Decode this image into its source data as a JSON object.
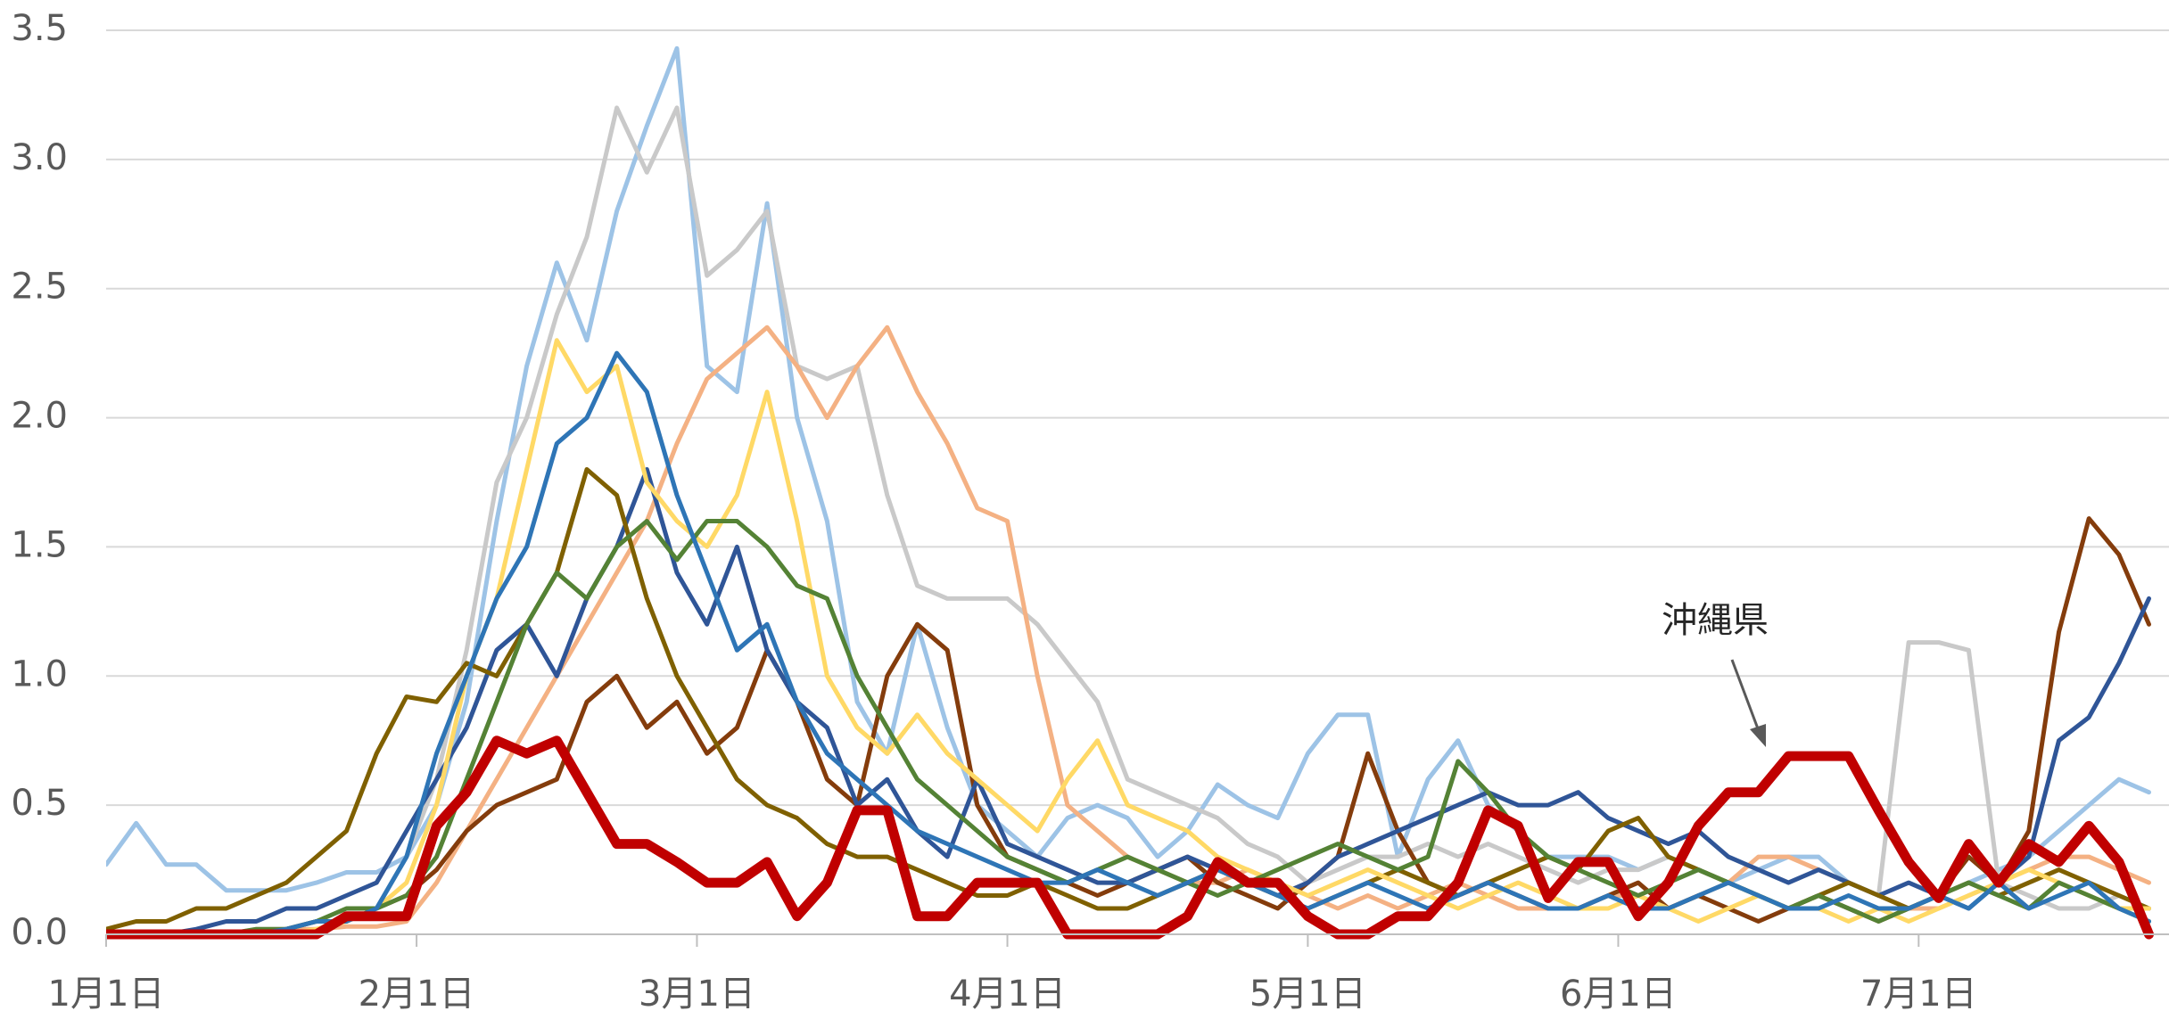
{
  "chart_data": {
    "type": "line",
    "annotation": "沖縄県",
    "x": [
      0,
      3,
      6,
      9,
      12,
      15,
      18,
      21,
      24,
      27,
      30,
      33,
      36,
      39,
      42,
      45,
      48,
      51,
      54,
      57,
      60,
      63,
      66,
      69,
      72,
      75,
      78,
      81,
      84,
      87,
      90,
      93,
      96,
      99,
      102,
      105,
      108,
      111,
      114,
      117,
      120,
      123,
      126,
      129,
      132,
      135,
      138,
      141,
      144,
      147,
      150,
      153,
      156,
      159,
      162,
      165,
      168,
      171,
      174,
      177,
      180,
      183,
      186,
      189,
      192,
      195,
      198,
      201,
      204
    ],
    "xlim": [
      0,
      206
    ],
    "xticks": [
      {
        "value": 0,
        "label": "1月1日"
      },
      {
        "value": 31,
        "label": "2月1日"
      },
      {
        "value": 59,
        "label": "3月1日"
      },
      {
        "value": 90,
        "label": "4月1日"
      },
      {
        "value": 120,
        "label": "5月1日"
      },
      {
        "value": 151,
        "label": "6月1日"
      },
      {
        "value": 181,
        "label": "7月1日"
      }
    ],
    "ylim": [
      0,
      3.5
    ],
    "yticks": [
      {
        "value": 0,
        "label": "0.0"
      },
      0.5,
      {
        "value": 1,
        "label": "1.0"
      },
      1.5,
      {
        "value": 2,
        "label": "2.0"
      },
      2.5,
      {
        "value": 3,
        "label": "3.0"
      },
      3.5
    ],
    "grid": true,
    "series": [
      {
        "color": "#9dc3e6",
        "values": [
          0.27,
          0.43,
          0.27,
          0.27,
          0.17,
          0.17,
          0.17,
          0.2,
          0.24,
          0.24,
          0.3,
          0.5,
          0.9,
          1.6,
          2.2,
          2.6,
          2.3,
          2.8,
          3.13,
          3.43,
          2.2,
          2.1,
          2.83,
          2.0,
          1.6,
          0.9,
          0.7,
          1.2,
          0.8,
          0.5,
          0.4,
          0.3,
          0.45,
          0.5,
          0.45,
          0.3,
          0.4,
          0.58,
          0.5,
          0.45,
          0.7,
          0.85,
          0.85,
          0.3,
          0.6,
          0.75,
          0.5,
          0.4,
          0.3,
          0.3,
          0.3,
          0.25,
          0.3,
          0.25,
          0.2,
          0.25,
          0.3,
          0.3,
          0.2,
          0.15,
          0.1,
          0.15,
          0.2,
          0.25,
          0.3,
          0.4,
          0.5,
          0.6,
          0.55
        ]
      },
      {
        "color": "#c9c9c9",
        "values": [
          0,
          0,
          0,
          0,
          0,
          0.02,
          0.02,
          0.05,
          0.05,
          0.1,
          0.3,
          0.6,
          1.1,
          1.75,
          2.0,
          2.4,
          2.7,
          3.2,
          2.95,
          3.2,
          2.55,
          2.65,
          2.8,
          2.2,
          2.15,
          2.2,
          1.7,
          1.35,
          1.3,
          1.3,
          1.3,
          1.2,
          1.05,
          0.9,
          0.6,
          0.55,
          0.5,
          0.45,
          0.35,
          0.3,
          0.2,
          0.25,
          0.3,
          0.3,
          0.35,
          0.3,
          0.35,
          0.3,
          0.25,
          0.2,
          0.25,
          0.25,
          0.3,
          0.25,
          0.2,
          0.15,
          0.1,
          0.15,
          0.2,
          0.15,
          1.13,
          1.13,
          1.1,
          0.2,
          0.15,
          0.1,
          0.1,
          0.15,
          0.1
        ]
      },
      {
        "color": "#f4b183",
        "values": [
          0,
          0,
          0,
          0,
          0,
          0,
          0.02,
          0.02,
          0.03,
          0.03,
          0.05,
          0.2,
          0.4,
          0.6,
          0.8,
          1.0,
          1.2,
          1.4,
          1.6,
          1.9,
          2.15,
          2.25,
          2.35,
          2.2,
          2.0,
          2.2,
          2.35,
          2.1,
          1.9,
          1.65,
          1.6,
          1.0,
          0.5,
          0.4,
          0.3,
          0.25,
          0.2,
          0.2,
          0.25,
          0.2,
          0.15,
          0.1,
          0.15,
          0.1,
          0.15,
          0.2,
          0.15,
          0.1,
          0.1,
          0.1,
          0.15,
          0.15,
          0.1,
          0.15,
          0.2,
          0.3,
          0.3,
          0.25,
          0.2,
          0.15,
          0.1,
          0.1,
          0.15,
          0.2,
          0.25,
          0.3,
          0.3,
          0.25,
          0.2
        ]
      },
      {
        "color": "#843c0c",
        "values": [
          0,
          0,
          0,
          0,
          0,
          0,
          0.02,
          0.05,
          0.05,
          0.1,
          0.15,
          0.25,
          0.4,
          0.5,
          0.55,
          0.6,
          0.9,
          1.0,
          0.8,
          0.9,
          0.7,
          0.8,
          1.1,
          0.9,
          0.6,
          0.5,
          1.0,
          1.2,
          1.1,
          0.5,
          0.3,
          0.25,
          0.2,
          0.15,
          0.2,
          0.25,
          0.3,
          0.2,
          0.15,
          0.1,
          0.2,
          0.3,
          0.7,
          0.4,
          0.2,
          0.15,
          0.2,
          0.15,
          0.1,
          0.1,
          0.15,
          0.2,
          0.1,
          0.15,
          0.1,
          0.05,
          0.1,
          0.15,
          0.1,
          0.05,
          0.1,
          0.15,
          0.3,
          0.2,
          0.4,
          1.17,
          1.61,
          1.47,
          1.2
        ]
      },
      {
        "color": "#2f5597",
        "values": [
          0,
          0,
          0,
          0.02,
          0.05,
          0.05,
          0.1,
          0.1,
          0.15,
          0.2,
          0.4,
          0.6,
          0.8,
          1.1,
          1.2,
          1.0,
          1.3,
          1.5,
          1.8,
          1.4,
          1.2,
          1.5,
          1.1,
          0.9,
          0.8,
          0.5,
          0.6,
          0.4,
          0.3,
          0.6,
          0.35,
          0.3,
          0.25,
          0.2,
          0.2,
          0.25,
          0.3,
          0.25,
          0.2,
          0.15,
          0.2,
          0.3,
          0.35,
          0.4,
          0.45,
          0.5,
          0.55,
          0.5,
          0.5,
          0.55,
          0.45,
          0.4,
          0.35,
          0.4,
          0.3,
          0.25,
          0.2,
          0.25,
          0.2,
          0.15,
          0.2,
          0.15,
          0.1,
          0.2,
          0.3,
          0.75,
          0.84,
          1.05,
          1.3
        ]
      },
      {
        "color": "#7f6000",
        "values": [
          0.02,
          0.05,
          0.05,
          0.1,
          0.1,
          0.15,
          0.2,
          0.3,
          0.4,
          0.7,
          0.92,
          0.9,
          1.05,
          1.0,
          1.2,
          1.4,
          1.8,
          1.7,
          1.3,
          1.0,
          0.8,
          0.6,
          0.5,
          0.45,
          0.35,
          0.3,
          0.3,
          0.25,
          0.2,
          0.15,
          0.15,
          0.2,
          0.15,
          0.1,
          0.1,
          0.15,
          0.2,
          0.25,
          0.2,
          0.15,
          0.1,
          0.15,
          0.2,
          0.25,
          0.2,
          0.15,
          0.2,
          0.25,
          0.3,
          0.25,
          0.4,
          0.45,
          0.3,
          0.25,
          0.2,
          0.15,
          0.1,
          0.15,
          0.2,
          0.15,
          0.1,
          0.15,
          0.2,
          0.15,
          0.2,
          0.25,
          0.2,
          0.15,
          0.1
        ]
      },
      {
        "color": "#ffd966",
        "values": [
          0,
          0,
          0,
          0,
          0,
          0,
          0,
          0.02,
          0.05,
          0.1,
          0.2,
          0.5,
          1.0,
          1.3,
          1.8,
          2.3,
          2.1,
          2.2,
          1.75,
          1.6,
          1.5,
          1.7,
          2.1,
          1.6,
          1.0,
          0.8,
          0.7,
          0.85,
          0.7,
          0.6,
          0.5,
          0.4,
          0.6,
          0.75,
          0.5,
          0.45,
          0.4,
          0.3,
          0.25,
          0.2,
          0.15,
          0.2,
          0.25,
          0.2,
          0.15,
          0.1,
          0.15,
          0.2,
          0.15,
          0.1,
          0.1,
          0.15,
          0.1,
          0.05,
          0.1,
          0.15,
          0.1,
          0.1,
          0.05,
          0.1,
          0.05,
          0.1,
          0.15,
          0.2,
          0.25,
          0.2,
          0.15,
          0.1,
          0.1
        ]
      },
      {
        "color": "#548235",
        "values": [
          0,
          0,
          0,
          0,
          0,
          0.02,
          0.02,
          0.05,
          0.1,
          0.1,
          0.15,
          0.3,
          0.6,
          0.9,
          1.2,
          1.4,
          1.3,
          1.5,
          1.6,
          1.45,
          1.6,
          1.6,
          1.5,
          1.35,
          1.3,
          1.0,
          0.8,
          0.6,
          0.5,
          0.4,
          0.3,
          0.25,
          0.2,
          0.25,
          0.3,
          0.25,
          0.2,
          0.15,
          0.2,
          0.25,
          0.3,
          0.35,
          0.3,
          0.25,
          0.3,
          0.67,
          0.55,
          0.4,
          0.3,
          0.25,
          0.2,
          0.15,
          0.2,
          0.25,
          0.2,
          0.15,
          0.1,
          0.15,
          0.1,
          0.05,
          0.1,
          0.15,
          0.2,
          0.15,
          0.1,
          0.2,
          0.15,
          0.1,
          0.05
        ]
      },
      {
        "color": "#2e75b6",
        "values": [
          0,
          0,
          0,
          0,
          0,
          0,
          0.02,
          0.05,
          0.05,
          0.1,
          0.3,
          0.7,
          1.0,
          1.3,
          1.5,
          1.9,
          2.0,
          2.25,
          2.1,
          1.7,
          1.4,
          1.1,
          1.2,
          0.9,
          0.7,
          0.6,
          0.5,
          0.4,
          0.35,
          0.3,
          0.25,
          0.2,
          0.2,
          0.25,
          0.2,
          0.15,
          0.2,
          0.25,
          0.2,
          0.15,
          0.1,
          0.15,
          0.2,
          0.15,
          0.1,
          0.15,
          0.2,
          0.15,
          0.1,
          0.1,
          0.15,
          0.1,
          0.1,
          0.15,
          0.2,
          0.15,
          0.1,
          0.1,
          0.15,
          0.1,
          0.1,
          0.15,
          0.1,
          0.2,
          0.1,
          0.15,
          0.2,
          0.1,
          0.05
        ]
      },
      {
        "color": "#c00000",
        "values": [
          0,
          0,
          0,
          0,
          0,
          0,
          0,
          0,
          0.07,
          0.07,
          0.07,
          0.42,
          0.55,
          0.75,
          0.7,
          0.75,
          0.55,
          0.35,
          0.35,
          0.28,
          0.2,
          0.2,
          0.28,
          0.07,
          0.2,
          0.48,
          0.48,
          0.07,
          0.07,
          0.2,
          0.2,
          0.2,
          0,
          0,
          0,
          0,
          0.07,
          0.28,
          0.2,
          0.2,
          0.07,
          0,
          0,
          0.07,
          0.07,
          0.2,
          0.48,
          0.42,
          0.14,
          0.28,
          0.28,
          0.07,
          0.2,
          0.42,
          0.55,
          0.55,
          0.69,
          0.69,
          0.69,
          0.48,
          0.28,
          0.14,
          0.35,
          0.2,
          0.35,
          0.28,
          0.42,
          0.28,
          0
        ]
      }
    ]
  }
}
